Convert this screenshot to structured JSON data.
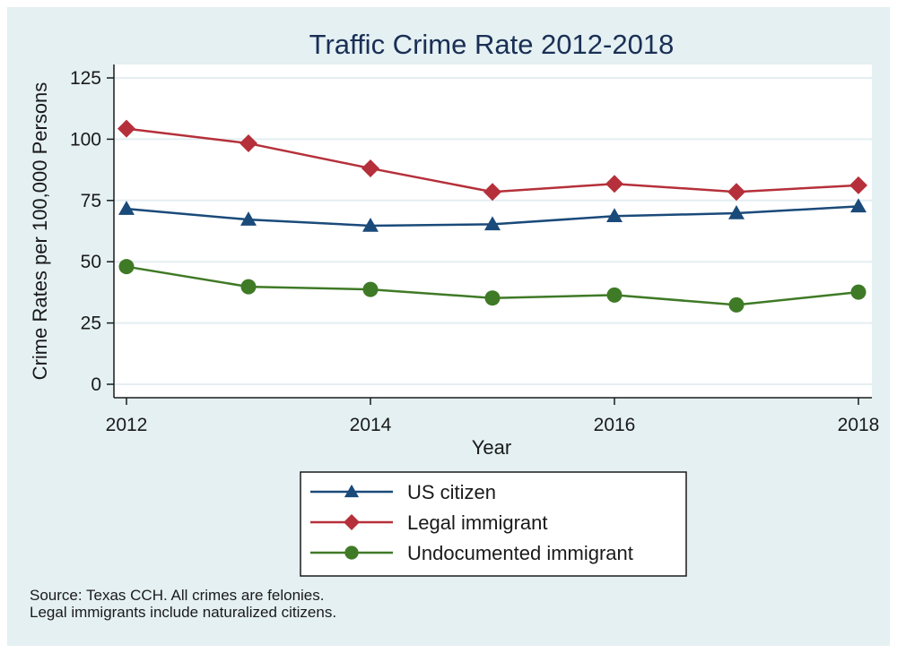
{
  "chart_data": {
    "type": "line",
    "title": "Traffic Crime Rate 2012-2018",
    "xlabel": "Year",
    "ylabel": "Crime Rates per 100,000 Persons",
    "x": [
      2012,
      2013,
      2014,
      2015,
      2016,
      2017,
      2018
    ],
    "xticks": [
      2012,
      2014,
      2016,
      2018
    ],
    "xlim": [
      2012,
      2018
    ],
    "yticks": [
      0,
      25,
      50,
      75,
      100,
      125
    ],
    "ylim": [
      0,
      125
    ],
    "grid": true,
    "legend_position": "bottom-center",
    "series": [
      {
        "name": "US citizen",
        "color": "#1a4a7a",
        "marker": "triangle",
        "values": [
          71.6,
          67.2,
          64.7,
          65.3,
          68.6,
          69.8,
          72.6
        ]
      },
      {
        "name": "Legal immigrant",
        "color": "#b5303a",
        "marker": "diamond",
        "values": [
          104.3,
          98.3,
          88.1,
          78.5,
          81.8,
          78.5,
          81.2
        ]
      },
      {
        "name": "Undocumented immigrant",
        "color": "#3f7a26",
        "marker": "circle",
        "values": [
          48.0,
          39.8,
          38.7,
          35.2,
          36.4,
          32.4,
          37.6
        ]
      }
    ],
    "notes": [
      "Source: Texas CCH. All crimes are felonies.",
      "Legal immigrants include naturalized citizens."
    ]
  },
  "colors": {
    "background": "#e4f0f2",
    "plot_background": "#ffffff",
    "title": "#1a2f55",
    "gridline": "#e4eef2"
  }
}
